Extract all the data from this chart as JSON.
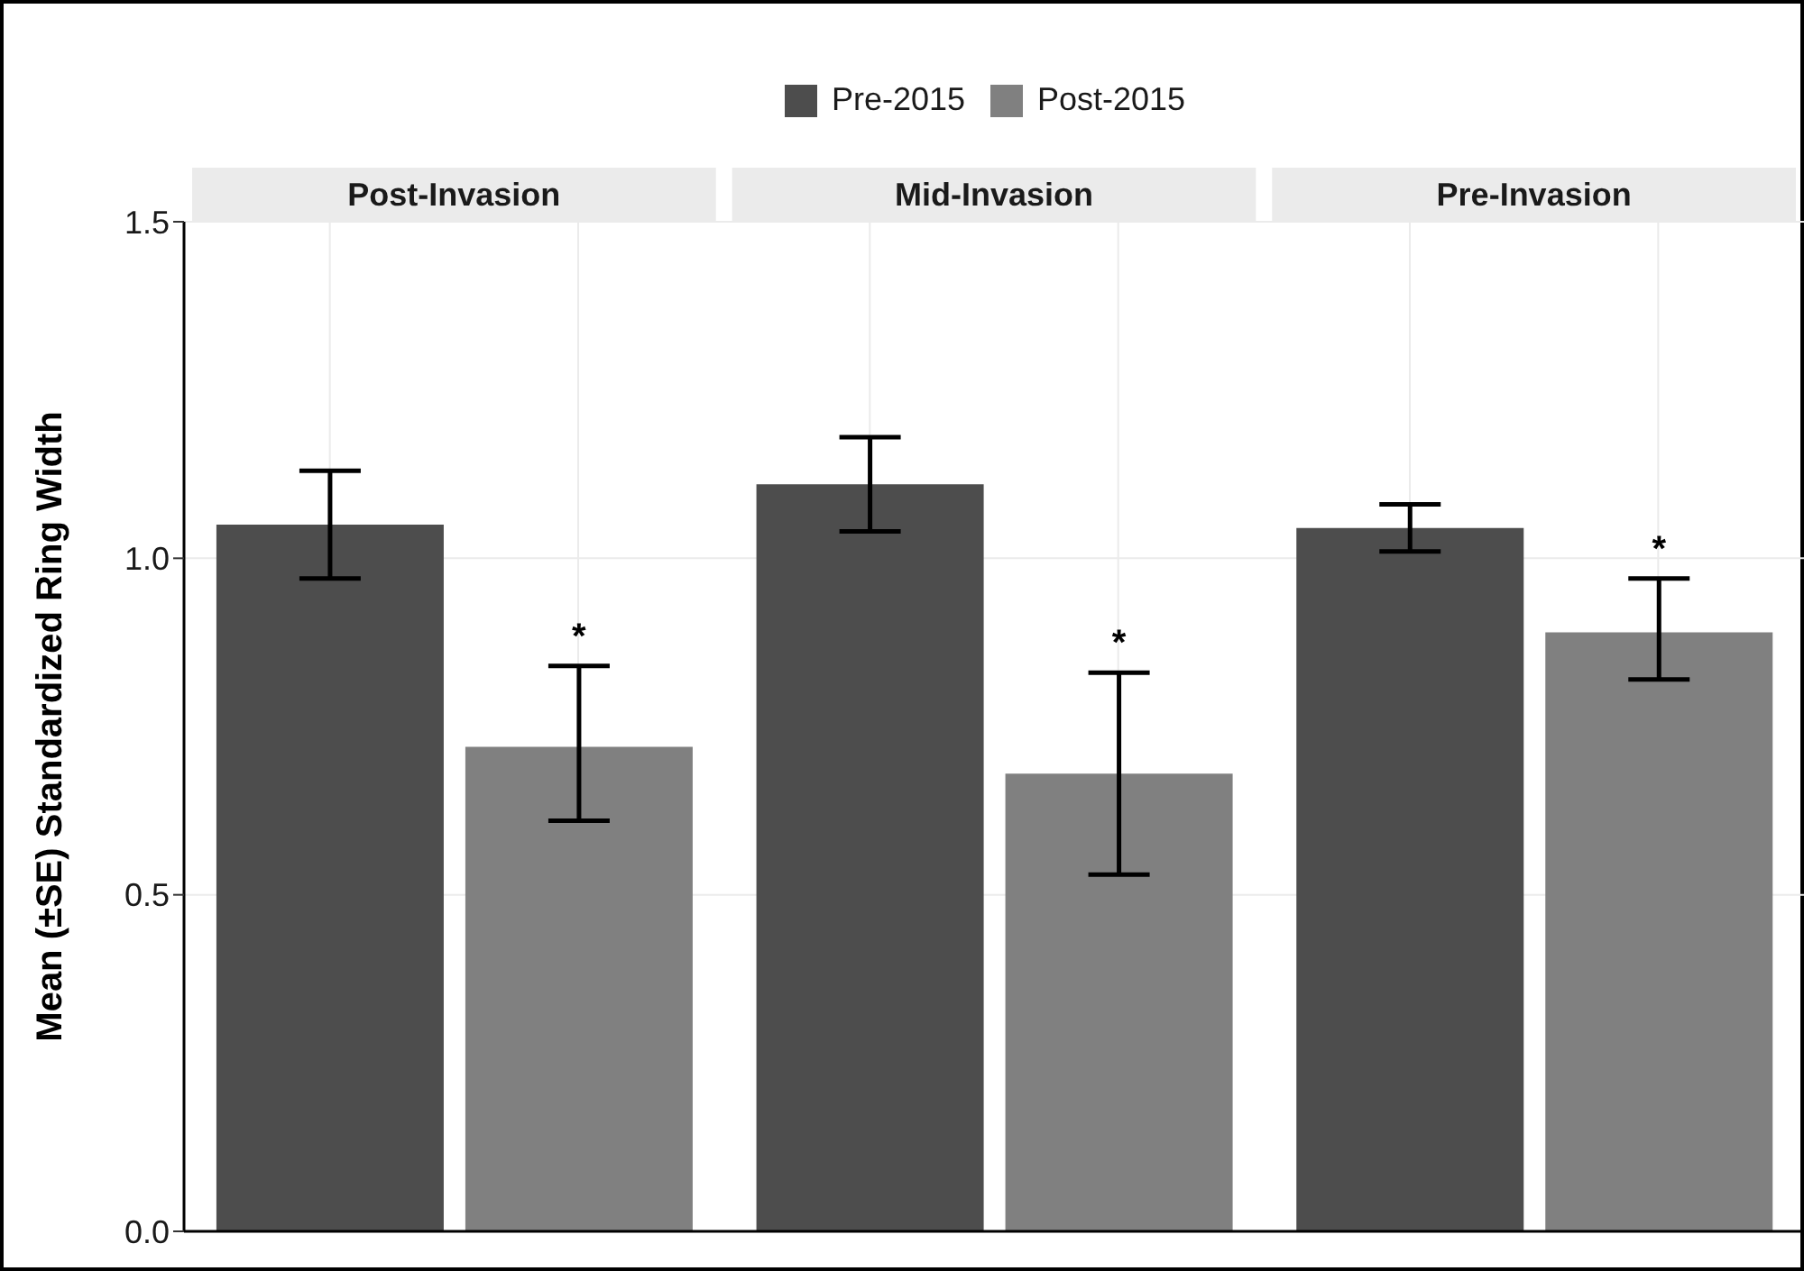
{
  "chart_data": {
    "type": "bar",
    "ylabel": "Mean (±SE) Standardized Ring Width",
    "categories": [
      "Post-Invasion",
      "Mid-Invasion",
      "Pre-Invasion"
    ],
    "series": [
      {
        "name": "Pre-2015",
        "color": "#4d4d4d",
        "values": [
          1.05,
          1.11,
          1.045
        ],
        "errors": [
          [
            0.97,
            1.13
          ],
          [
            1.04,
            1.18
          ],
          [
            1.01,
            1.08
          ]
        ]
      },
      {
        "name": "Post-2015",
        "color": "#808080",
        "values": [
          0.72,
          0.68,
          0.89
        ],
        "errors": [
          [
            0.61,
            0.84
          ],
          [
            0.53,
            0.83
          ],
          [
            0.82,
            0.97
          ]
        ]
      }
    ],
    "annotations": [
      "*",
      "*",
      "*"
    ],
    "ylim": [
      0,
      1.5
    ],
    "yticks": [
      {
        "value": 0,
        "label": "0.0"
      },
      0.5,
      {
        "value": 1,
        "label": "1.0"
      },
      1.5
    ],
    "grid": true,
    "legend": "top"
  }
}
